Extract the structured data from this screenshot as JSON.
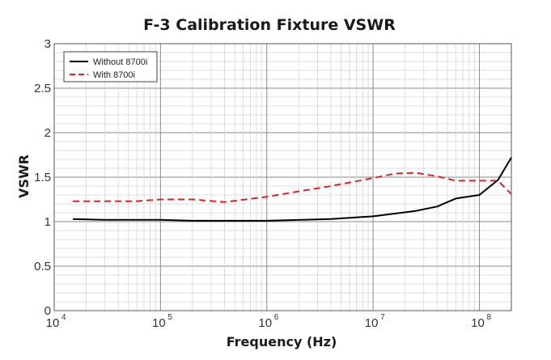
{
  "chart_data": {
    "type": "line",
    "title": "F-3 Calibration Fixture VSWR",
    "xlabel": "Frequency (Hz)",
    "ylabel": "VSWR",
    "xscale": "log",
    "xlim": [
      10000,
      200000000
    ],
    "ylim": [
      0,
      3
    ],
    "x_ticks": [
      {
        "base": "10",
        "exp": "4"
      },
      {
        "base": "10",
        "exp": "5"
      },
      {
        "base": "10",
        "exp": "6"
      },
      {
        "base": "10",
        "exp": "7"
      },
      {
        "base": "10",
        "exp": "8"
      }
    ],
    "y_ticks": [
      "0",
      "0.5",
      "1",
      "1.5",
      "2",
      "2.5",
      "3"
    ],
    "grid": true,
    "legend_position": "top-left",
    "series": [
      {
        "name": "Without 8700i",
        "color": "#000000",
        "dash": "solid",
        "x": [
          15000,
          30000,
          100000,
          200000,
          1000000,
          4000000,
          10000000,
          25000000,
          40000000,
          60000000,
          100000000,
          150000000,
          200000000
        ],
        "y": [
          1.03,
          1.02,
          1.02,
          1.01,
          1.01,
          1.03,
          1.06,
          1.12,
          1.17,
          1.26,
          1.3,
          1.47,
          1.72
        ]
      },
      {
        "name": "With 8700i",
        "color": "#e02020",
        "dash": "dashed",
        "x": [
          15000,
          60000,
          100000,
          200000,
          400000,
          1000000,
          4000000,
          10000000,
          16000000,
          25000000,
          40000000,
          60000000,
          100000000,
          150000000,
          200000000
        ],
        "y": [
          1.23,
          1.23,
          1.25,
          1.25,
          1.22,
          1.28,
          1.4,
          1.49,
          1.54,
          1.55,
          1.51,
          1.46,
          1.46,
          1.46,
          1.31
        ]
      }
    ]
  }
}
